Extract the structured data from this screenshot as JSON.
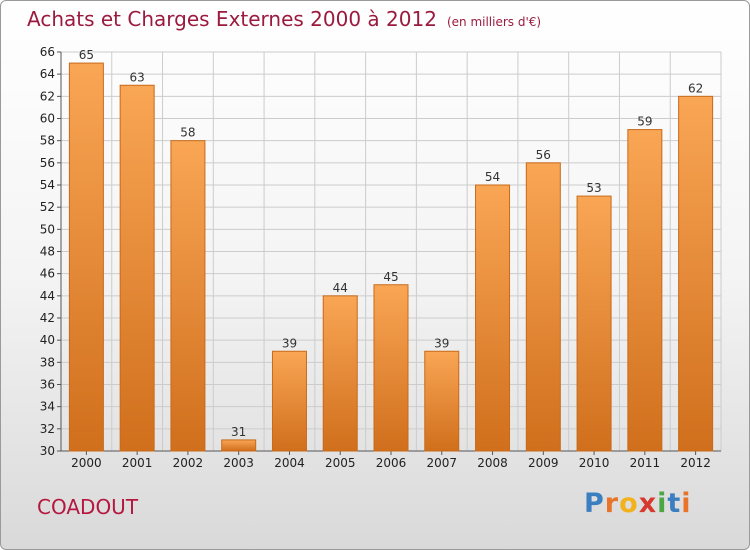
{
  "header": {
    "title": "Achats et Charges Externes 2000 à 2012",
    "subtitle": "(en milliers d'€)"
  },
  "commune": "COADOUT",
  "logo": {
    "text": "Proxiti",
    "letters": [
      {
        "char": "P",
        "color": "#3c7fc0"
      },
      {
        "char": "r",
        "color": "#e8742a"
      },
      {
        "char": "o",
        "color": "#f2b21b"
      },
      {
        "char": "x",
        "color": "#d63a2f"
      },
      {
        "char": "i",
        "color": "#4aa843"
      },
      {
        "char": "t",
        "color": "#3c7fc0"
      },
      {
        "char": "i",
        "color": "#e8742a"
      }
    ]
  },
  "colors": {
    "bar_light": "#f9a655",
    "bar_dark": "#d06f1c",
    "bar_stroke": "#c86a1a",
    "grid": "#cccccc",
    "axis": "#555555"
  },
  "chart_data": {
    "type": "bar",
    "title": "Achats et Charges Externes 2000 à 2012",
    "subtitle": "(en milliers d'€)",
    "categories": [
      "2000",
      "2001",
      "2002",
      "2003",
      "2004",
      "2005",
      "2006",
      "2007",
      "2008",
      "2009",
      "2010",
      "2011",
      "2012"
    ],
    "values": [
      65,
      63,
      58,
      31,
      39,
      44,
      45,
      39,
      54,
      56,
      53,
      59,
      62
    ],
    "xlabel": "",
    "ylabel": "",
    "ylim": [
      30,
      66
    ],
    "yticks": [
      30,
      32,
      34,
      36,
      38,
      40,
      42,
      44,
      46,
      48,
      50,
      52,
      54,
      56,
      58,
      60,
      62,
      64,
      66
    ],
    "grid": true,
    "data_labels": true
  }
}
